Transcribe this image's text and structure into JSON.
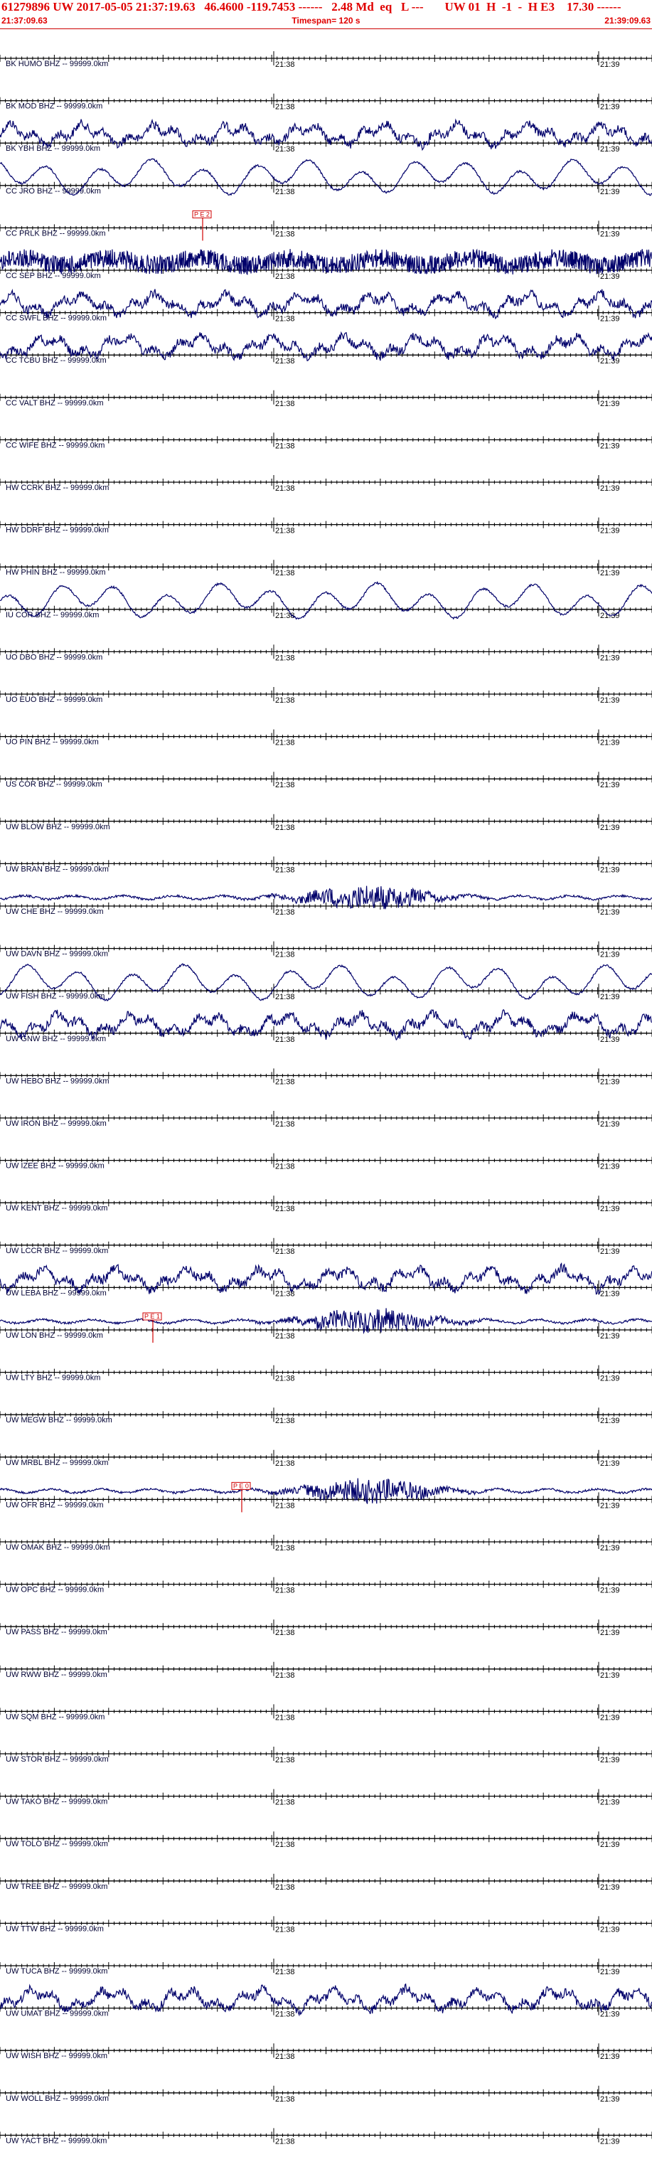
{
  "header": {
    "title": "61279896 UW 2017-05-05 21:37:19.63   46.4600 -119.7453 ------   2.48 Md  eq   L ---       UW 01  H  -1  -  H E3    17.30 ------",
    "start_time": "21:37:09.63",
    "timespan": "Timespan= 120 s",
    "end_time": "21:39:09.63"
  },
  "minute_labels": {
    "first": "21:38",
    "second": "21:39"
  },
  "colors": {
    "header_text": "#e00000",
    "trace": "#00006a",
    "pick": "#d00000",
    "timeline": "#000000"
  },
  "channels": [
    {
      "label": "BK HUMO BHZ -- 99999.0km",
      "amp": "none"
    },
    {
      "label": "BK MOD BHZ -- 99999.0km",
      "amp": "none"
    },
    {
      "label": "BK YBH BHZ -- 99999.0km",
      "amp": "noisy"
    },
    {
      "label": "CC JRO BHZ -- 99999.0km",
      "amp": "smooth"
    },
    {
      "label": "CC PRLK BHZ -- 99999.0km",
      "amp": "none",
      "pick": "P E 2"
    },
    {
      "label": "CC SEP BHZ -- 99999.0km",
      "amp": "dense"
    },
    {
      "label": "CC SWFL BHZ -- 99999.0km",
      "amp": "noisy"
    },
    {
      "label": "CC TCBU BHZ -- 99999.0km",
      "amp": "noisy"
    },
    {
      "label": "CC VALT BHZ -- 99999.0km",
      "amp": "none"
    },
    {
      "label": "CC WIFE BHZ -- 99999.0km",
      "amp": "none"
    },
    {
      "label": "HW CCRK BHZ -- 99999.0km",
      "amp": "none"
    },
    {
      "label": "HW DDRF BHZ -- 99999.0km",
      "amp": "none"
    },
    {
      "label": "HW PHIN BHZ -- 99999.0km",
      "amp": "none"
    },
    {
      "label": "IU COR BHZ -- 99999.0km",
      "amp": "smooth"
    },
    {
      "label": "UO DBO BHZ -- 99999.0km",
      "amp": "none"
    },
    {
      "label": "UO EUO BHZ -- 99999.0km",
      "amp": "none"
    },
    {
      "label": "UO PIN BHZ -- 99999.0km",
      "amp": "none"
    },
    {
      "label": "US COR BHZ -- 99999.0km",
      "amp": "none"
    },
    {
      "label": "UW BLOW BHZ -- 99999.0km",
      "amp": "none"
    },
    {
      "label": "UW BRAN BHZ -- 99999.0km",
      "amp": "none"
    },
    {
      "label": "UW CHE BHZ -- 99999.0km",
      "amp": "event"
    },
    {
      "label": "UW DAVN BHZ -- 99999.0km",
      "amp": "none"
    },
    {
      "label": "UW FISH BHZ -- 99999.0km",
      "amp": "smooth"
    },
    {
      "label": "UW GNW BHZ -- 99999.0km",
      "amp": "noisy"
    },
    {
      "label": "UW HEBO BHZ -- 99999.0km",
      "amp": "none"
    },
    {
      "label": "UW IRON BHZ -- 99999.0km",
      "amp": "none"
    },
    {
      "label": "UW IZEE BHZ -- 99999.0km",
      "amp": "none"
    },
    {
      "label": "UW KENT BHZ -- 99999.0km",
      "amp": "none"
    },
    {
      "label": "UW LCCR BHZ -- 99999.0km",
      "amp": "none"
    },
    {
      "label": "UW LEBA BHZ -- 99999.0km",
      "amp": "noisy"
    },
    {
      "label": "UW LON BHZ -- 99999.0km",
      "amp": "event",
      "pick": "P E 1"
    },
    {
      "label": "UW LTY BHZ -- 99999.0km",
      "amp": "none"
    },
    {
      "label": "UW MEGW BHZ -- 99999.0km",
      "amp": "none"
    },
    {
      "label": "UW MRBL BHZ -- 99999.0km",
      "amp": "none"
    },
    {
      "label": "UW OFR BHZ -- 99999.0km",
      "amp": "event",
      "pick": "P E 0"
    },
    {
      "label": "UW OMAK BHZ -- 99999.0km",
      "amp": "none"
    },
    {
      "label": "UW OPC BHZ -- 99999.0km",
      "amp": "none"
    },
    {
      "label": "UW PASS BHZ -- 99999.0km",
      "amp": "none"
    },
    {
      "label": "UW RWW BHZ -- 99999.0km",
      "amp": "none"
    },
    {
      "label": "UW SQM BHZ -- 99999.0km",
      "amp": "none"
    },
    {
      "label": "UW STOR BHZ -- 99999.0km",
      "amp": "none"
    },
    {
      "label": "UW TAKO BHZ -- 99999.0km",
      "amp": "none"
    },
    {
      "label": "UW TOLO BHZ -- 99999.0km",
      "amp": "none"
    },
    {
      "label": "UW TREE BHZ -- 99999.0km",
      "amp": "none"
    },
    {
      "label": "UW TTW BHZ -- 99999.0km",
      "amp": "none"
    },
    {
      "label": "UW TUCA BHZ -- 99999.0km",
      "amp": "none"
    },
    {
      "label": "UW UMAT BHZ -- 99999.0km",
      "amp": "noisy"
    },
    {
      "label": "UW WISH BHZ -- 99999.0km",
      "amp": "none"
    },
    {
      "label": "UW WOLL BHZ -- 99999.0km",
      "amp": "none"
    },
    {
      "label": "UW YACT BHZ -- 99999.0km",
      "amp": "none"
    }
  ]
}
